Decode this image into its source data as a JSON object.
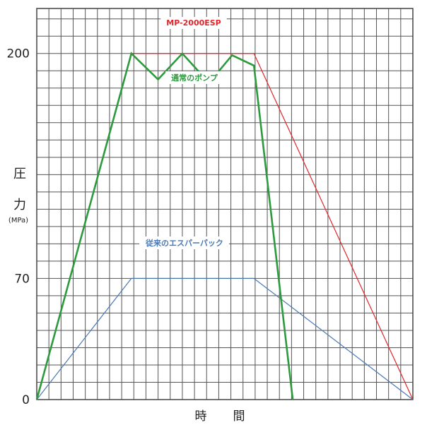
{
  "chart_data": {
    "type": "line",
    "title": "",
    "xlabel": "時　間",
    "ylabel_chars": [
      "圧",
      "力"
    ],
    "yunit": "(MPa)",
    "x_unlabeled": true,
    "xlim": [
      0,
      31
    ],
    "ylim": [
      0,
      226
    ],
    "yticks": [
      0,
      70,
      200
    ],
    "ytick_labels": [
      "0",
      "70",
      "200"
    ],
    "grid": true,
    "grid_color": "#555555",
    "series": [
      {
        "name": "MP-2000ESP",
        "color": "#e0262a",
        "x": [
          0,
          7.8,
          17.9,
          31
        ],
        "y": [
          0,
          200,
          200,
          0
        ]
      },
      {
        "name": "通常のポンプ",
        "color": "#2d9a3e",
        "x": [
          0,
          7.8,
          10,
          12,
          14.2,
          16.1,
          17.9,
          21.1
        ],
        "y": [
          0,
          200,
          185,
          200,
          183,
          199,
          193,
          0
        ]
      },
      {
        "name": "従来のエスパーパック",
        "color": "#4a78b5",
        "x": [
          0,
          7.8,
          17.9,
          31
        ],
        "y": [
          0,
          70,
          70,
          0
        ]
      }
    ]
  }
}
